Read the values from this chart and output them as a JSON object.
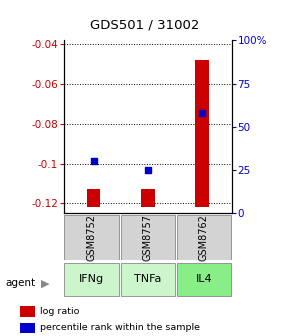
{
  "title": "GDS501 / 31002",
  "samples": [
    "GSM8752",
    "GSM8757",
    "GSM8762"
  ],
  "agents": [
    "IFNg",
    "TNFa",
    "IL4"
  ],
  "log_ratios": [
    -0.113,
    -0.113,
    -0.048
  ],
  "percentile_ranks": [
    30,
    25,
    58
  ],
  "ylim_left": [
    -0.125,
    -0.038
  ],
  "yticks_left": [
    -0.04,
    -0.06,
    -0.08,
    -0.1,
    -0.12
  ],
  "yticks_right": [
    0,
    25,
    50,
    75,
    100
  ],
  "bar_color": "#cc0000",
  "dot_color": "#0000cc",
  "agent_colors": [
    "#ccf5cc",
    "#ccf5cc",
    "#88ee88"
  ],
  "sample_bg": "#d3d3d3",
  "legend_bar_label": "log ratio",
  "legend_dot_label": "percentile rank within the sample",
  "ylabel_left_color": "#cc0000",
  "ylabel_right_color": "#0000cc",
  "bar_width": 0.25,
  "bar_bottom": -0.122
}
